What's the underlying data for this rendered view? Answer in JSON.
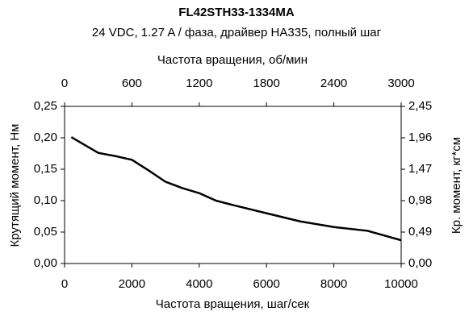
{
  "chart_data": {
    "type": "line",
    "title": "FL42STH33-1334MA",
    "subtitle": "24 VDC, 1.27 A / фаза, драйвер HA335, полный шаг",
    "x_label": "Частота вращения, шаг/сек",
    "x2_label": "Частота вращения, об/мин",
    "y_label": "Крутящий момент, Нм",
    "y2_label": "Кр. момент, кг*см",
    "x": [
      200,
      1000,
      1500,
      2000,
      2500,
      3000,
      3500,
      4000,
      4500,
      5000,
      6000,
      7000,
      8000,
      9000,
      10000
    ],
    "values": [
      0.201,
      0.176,
      0.171,
      0.165,
      0.148,
      0.13,
      0.12,
      0.112,
      0.1,
      0.093,
      0.08,
      0.067,
      0.058,
      0.052,
      0.037
    ],
    "color": "#000000",
    "xlim": [
      0,
      10000
    ],
    "xticks": [
      0,
      2000,
      4000,
      6000,
      8000,
      10000
    ],
    "x2lim": [
      0,
      3000
    ],
    "x2ticks": [
      0,
      600,
      1200,
      1800,
      2400,
      3000
    ],
    "ylim": [
      0,
      0.25
    ],
    "yticks": [
      {
        "value": 0,
        "label": "0,00"
      },
      {
        "value": 0.05,
        "label": "0,05"
      },
      {
        "value": 0.1,
        "label": "0,10"
      },
      {
        "value": 0.15,
        "label": "0,15"
      },
      {
        "value": 0.2,
        "label": "0,20"
      },
      {
        "value": 0.25,
        "label": "0,25"
      }
    ],
    "y2lim": [
      0,
      2.45
    ],
    "y2ticks": [
      {
        "value": 0,
        "label": "0,00"
      },
      {
        "value": 0.49,
        "label": "0,49"
      },
      {
        "value": 0.98,
        "label": "0,98"
      },
      {
        "value": 1.47,
        "label": "1,47"
      },
      {
        "value": 1.96,
        "label": "1,96"
      },
      {
        "value": 2.45,
        "label": "2,45"
      }
    ],
    "grid": false
  }
}
